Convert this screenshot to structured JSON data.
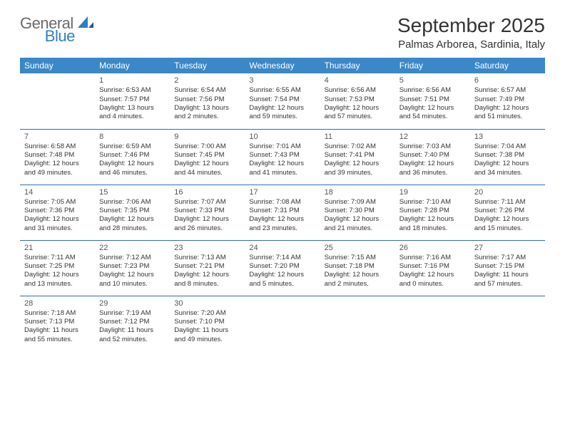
{
  "logo": {
    "part1": "General",
    "part2": "Blue"
  },
  "title": "September 2025",
  "location": "Palmas Arborea, Sardinia, Italy",
  "colors": {
    "header_bg": "#3b87c8",
    "header_text": "#ffffff",
    "row_border": "#2f6fa8",
    "logo_gray": "#6a6a6a",
    "logo_blue": "#2f7fc2",
    "body_text": "#333333"
  },
  "day_headers": [
    "Sunday",
    "Monday",
    "Tuesday",
    "Wednesday",
    "Thursday",
    "Friday",
    "Saturday"
  ],
  "weeks": [
    [
      null,
      {
        "n": "1",
        "sr": "6:53 AM",
        "ss": "7:57 PM",
        "dl": "13 hours and 4 minutes."
      },
      {
        "n": "2",
        "sr": "6:54 AM",
        "ss": "7:56 PM",
        "dl": "13 hours and 2 minutes."
      },
      {
        "n": "3",
        "sr": "6:55 AM",
        "ss": "7:54 PM",
        "dl": "12 hours and 59 minutes."
      },
      {
        "n": "4",
        "sr": "6:56 AM",
        "ss": "7:53 PM",
        "dl": "12 hours and 57 minutes."
      },
      {
        "n": "5",
        "sr": "6:56 AM",
        "ss": "7:51 PM",
        "dl": "12 hours and 54 minutes."
      },
      {
        "n": "6",
        "sr": "6:57 AM",
        "ss": "7:49 PM",
        "dl": "12 hours and 51 minutes."
      }
    ],
    [
      {
        "n": "7",
        "sr": "6:58 AM",
        "ss": "7:48 PM",
        "dl": "12 hours and 49 minutes."
      },
      {
        "n": "8",
        "sr": "6:59 AM",
        "ss": "7:46 PM",
        "dl": "12 hours and 46 minutes."
      },
      {
        "n": "9",
        "sr": "7:00 AM",
        "ss": "7:45 PM",
        "dl": "12 hours and 44 minutes."
      },
      {
        "n": "10",
        "sr": "7:01 AM",
        "ss": "7:43 PM",
        "dl": "12 hours and 41 minutes."
      },
      {
        "n": "11",
        "sr": "7:02 AM",
        "ss": "7:41 PM",
        "dl": "12 hours and 39 minutes."
      },
      {
        "n": "12",
        "sr": "7:03 AM",
        "ss": "7:40 PM",
        "dl": "12 hours and 36 minutes."
      },
      {
        "n": "13",
        "sr": "7:04 AM",
        "ss": "7:38 PM",
        "dl": "12 hours and 34 minutes."
      }
    ],
    [
      {
        "n": "14",
        "sr": "7:05 AM",
        "ss": "7:36 PM",
        "dl": "12 hours and 31 minutes."
      },
      {
        "n": "15",
        "sr": "7:06 AM",
        "ss": "7:35 PM",
        "dl": "12 hours and 28 minutes."
      },
      {
        "n": "16",
        "sr": "7:07 AM",
        "ss": "7:33 PM",
        "dl": "12 hours and 26 minutes."
      },
      {
        "n": "17",
        "sr": "7:08 AM",
        "ss": "7:31 PM",
        "dl": "12 hours and 23 minutes."
      },
      {
        "n": "18",
        "sr": "7:09 AM",
        "ss": "7:30 PM",
        "dl": "12 hours and 21 minutes."
      },
      {
        "n": "19",
        "sr": "7:10 AM",
        "ss": "7:28 PM",
        "dl": "12 hours and 18 minutes."
      },
      {
        "n": "20",
        "sr": "7:11 AM",
        "ss": "7:26 PM",
        "dl": "12 hours and 15 minutes."
      }
    ],
    [
      {
        "n": "21",
        "sr": "7:11 AM",
        "ss": "7:25 PM",
        "dl": "12 hours and 13 minutes."
      },
      {
        "n": "22",
        "sr": "7:12 AM",
        "ss": "7:23 PM",
        "dl": "12 hours and 10 minutes."
      },
      {
        "n": "23",
        "sr": "7:13 AM",
        "ss": "7:21 PM",
        "dl": "12 hours and 8 minutes."
      },
      {
        "n": "24",
        "sr": "7:14 AM",
        "ss": "7:20 PM",
        "dl": "12 hours and 5 minutes."
      },
      {
        "n": "25",
        "sr": "7:15 AM",
        "ss": "7:18 PM",
        "dl": "12 hours and 2 minutes."
      },
      {
        "n": "26",
        "sr": "7:16 AM",
        "ss": "7:16 PM",
        "dl": "12 hours and 0 minutes."
      },
      {
        "n": "27",
        "sr": "7:17 AM",
        "ss": "7:15 PM",
        "dl": "11 hours and 57 minutes."
      }
    ],
    [
      {
        "n": "28",
        "sr": "7:18 AM",
        "ss": "7:13 PM",
        "dl": "11 hours and 55 minutes."
      },
      {
        "n": "29",
        "sr": "7:19 AM",
        "ss": "7:12 PM",
        "dl": "11 hours and 52 minutes."
      },
      {
        "n": "30",
        "sr": "7:20 AM",
        "ss": "7:10 PM",
        "dl": "11 hours and 49 minutes."
      },
      null,
      null,
      null,
      null
    ]
  ],
  "labels": {
    "sunrise": "Sunrise:",
    "sunset": "Sunset:",
    "daylight": "Daylight:"
  }
}
